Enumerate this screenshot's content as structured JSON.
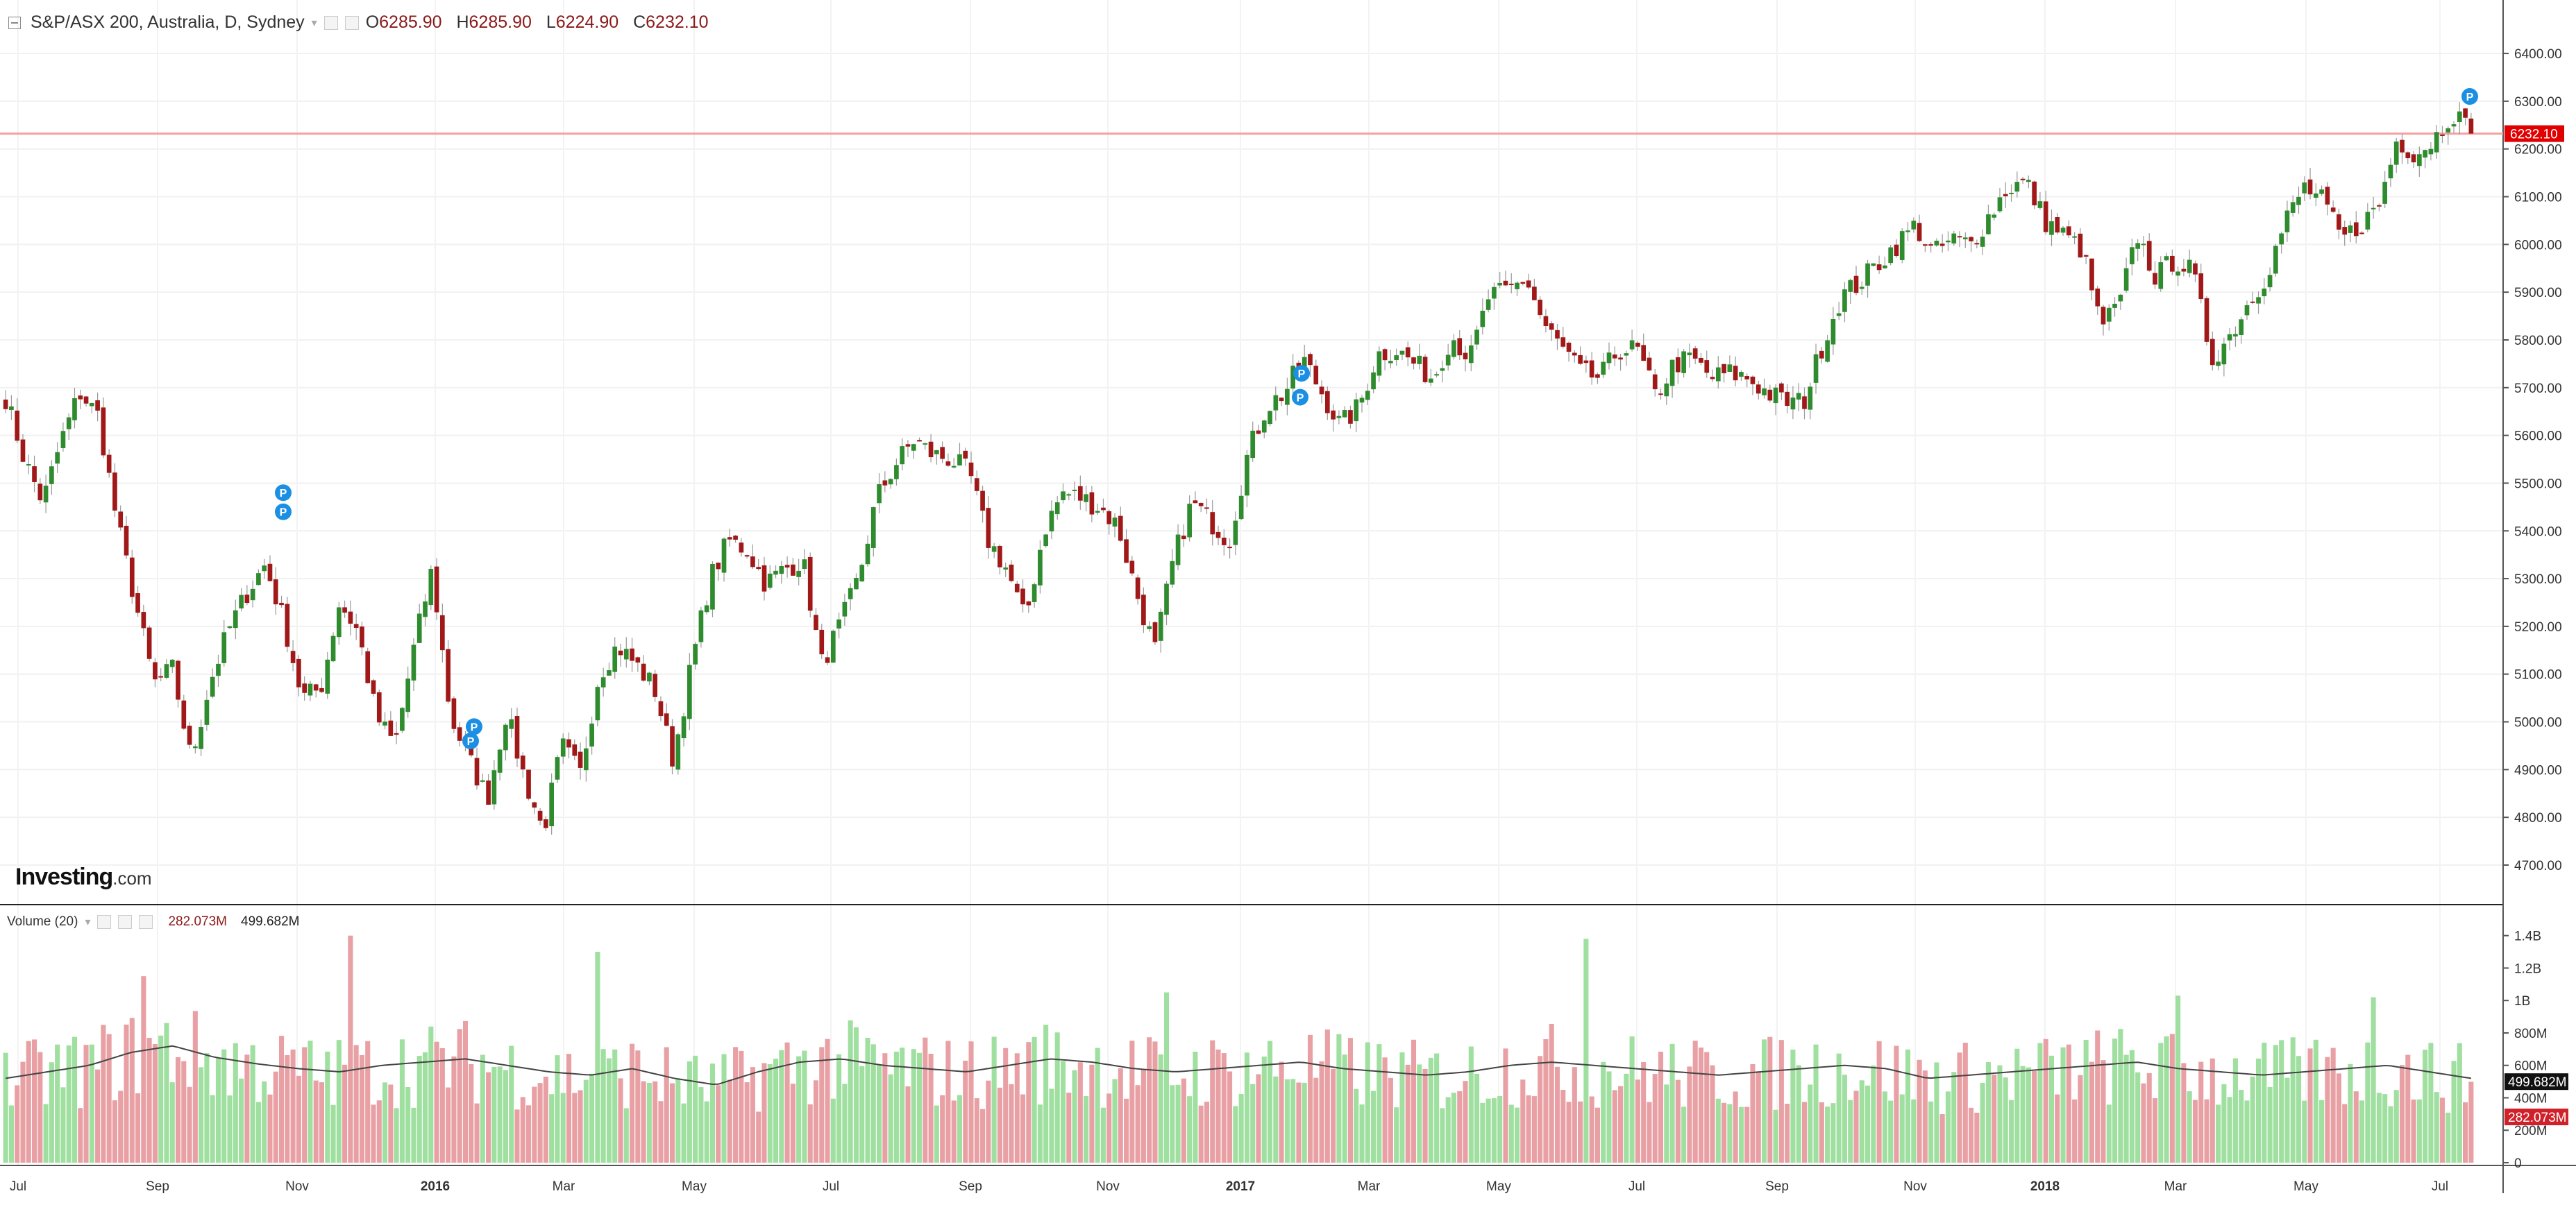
{
  "legend": {
    "symbol": "S&P/ASX 200, Australia, D, Sydney",
    "open_label": "O",
    "open": "6285.90",
    "high_label": "H",
    "high": "6285.90",
    "low_label": "L",
    "low": "6224.90",
    "close_label": "C",
    "close": "6232.10"
  },
  "volume_legend": {
    "label": "Volume (20)",
    "value": "282.073M",
    "ma_value": "499.682M"
  },
  "logo": {
    "text": "Investing",
    "suffix": ".com"
  },
  "colors": {
    "up": "#2e8b2e",
    "down": "#a01818",
    "vol_up": "#9fdf9f",
    "vol_down": "#e8a0a4",
    "last_price": "#e00000",
    "ma_line": "#444444"
  },
  "chart_data": [
    {
      "type": "candlestick",
      "title": "S&P/ASX 200, Australia, D, Sydney",
      "ylim": [
        4650,
        6450
      ],
      "y_ticks": [
        "6400.00",
        "6300.00",
        "6200.00",
        "6100.00",
        "6000.00",
        "5900.00",
        "5800.00",
        "5700.00",
        "5600.00",
        "5500.00",
        "5400.00",
        "5300.00",
        "5200.00",
        "5100.00",
        "5000.00",
        "4900.00",
        "4800.00",
        "4700.00"
      ],
      "x_labels": [
        "Jul",
        "Sep",
        "Nov",
        "2016",
        "Mar",
        "May",
        "Jul",
        "Sep",
        "Nov",
        "2017",
        "Mar",
        "May",
        "Jul",
        "Sep",
        "Nov",
        "2018",
        "Mar",
        "May",
        "Jul"
      ],
      "last_price": "6232.10",
      "closes": [
        5680,
        5550,
        5460,
        5590,
        5690,
        5640,
        5420,
        5250,
        5080,
        5110,
        4920,
        5080,
        5190,
        5270,
        5330,
        5210,
        5050,
        5070,
        5250,
        5190,
        5010,
        4950,
        5150,
        5320,
        5010,
        4920,
        4840,
        5020,
        4880,
        4770,
        4950,
        4890,
        5100,
        5160,
        5120,
        5070,
        4920,
        5120,
        5300,
        5380,
        5360,
        5290,
        5320,
        5340,
        5120,
        5200,
        5300,
        5470,
        5540,
        5590,
        5560,
        5550,
        5520,
        5380,
        5320,
        5210,
        5400,
        5480,
        5470,
        5450,
        5410,
        5270,
        5150,
        5340,
        5460,
        5420,
        5380,
        5560,
        5660,
        5690,
        5760,
        5690,
        5620,
        5660,
        5770,
        5780,
        5750,
        5720,
        5810,
        5760,
        5890,
        5900,
        5930,
        5830,
        5780,
        5730,
        5720,
        5780,
        5780,
        5680,
        5750,
        5760,
        5720,
        5730,
        5720,
        5690,
        5670,
        5670,
        5790,
        5890,
        5920,
        5960,
        6000,
        6040,
        5980,
        6010,
        6000,
        6060,
        6120,
        6130,
        6050,
        6020,
        5990,
        5830,
        5870,
        6020,
        5930,
        5970,
        5940,
        5760,
        5810,
        5880,
        5940,
        6050,
        6120,
        6090,
        6010,
        6040,
        6080,
        6220,
        6190,
        6220,
        6280,
        6232
      ],
      "markers": [
        {
          "label": "P",
          "value": 5440
        },
        {
          "label": "P",
          "value": 5480
        },
        {
          "label": "P",
          "value": 4990
        },
        {
          "label": "P",
          "value": 4960
        },
        {
          "label": "P",
          "value": 5680
        },
        {
          "label": "P",
          "value": 5730
        },
        {
          "label": "P",
          "value": 6310
        }
      ]
    },
    {
      "type": "bar",
      "title": "Volume (20)",
      "ylim": [
        0,
        1450
      ],
      "y_unit": "M",
      "y_ticks": [
        "1.4B",
        "1.2B",
        "1B",
        "800M",
        "600M",
        "400M",
        "200M",
        "0"
      ],
      "last_value": "282.073M",
      "ma_value": "499.682M",
      "profile": [
        520,
        560,
        600,
        680,
        720,
        650,
        610,
        580,
        560,
        600,
        620,
        640,
        600,
        560,
        540,
        580,
        520,
        480,
        560,
        620,
        640,
        600,
        580,
        560,
        600,
        640,
        620,
        580,
        560,
        580,
        600,
        620,
        580,
        560,
        540,
        560,
        600,
        620,
        600,
        580,
        560,
        540,
        560,
        580,
        600,
        580,
        520,
        540,
        560,
        580,
        600,
        620,
        580,
        560,
        540,
        560,
        580,
        600,
        560,
        520
      ],
      "spikes": [
        {
          "pos": 0.055,
          "value": 1150
        },
        {
          "pos": 0.14,
          "value": 1400
        },
        {
          "pos": 0.24,
          "value": 1300
        },
        {
          "pos": 0.47,
          "value": 1050
        },
        {
          "pos": 0.64,
          "value": 1380
        },
        {
          "pos": 0.88,
          "value": 1030
        },
        {
          "pos": 0.96,
          "value": 1020
        }
      ]
    }
  ]
}
